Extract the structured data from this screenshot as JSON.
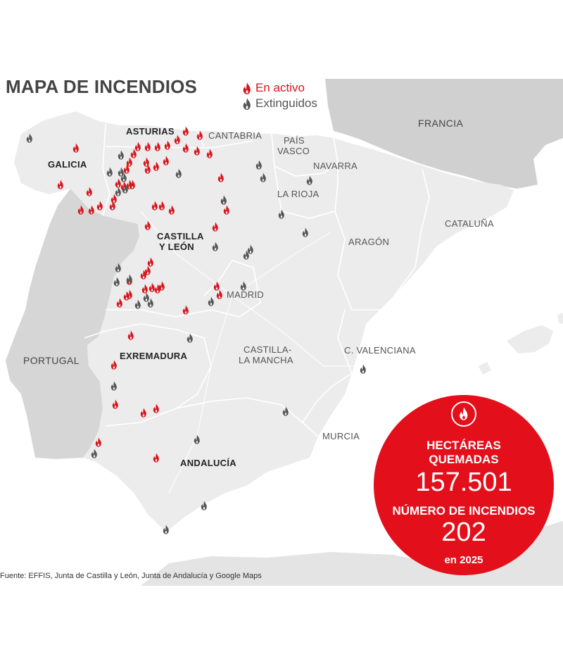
{
  "title": "MAPA DE INCENDIOS",
  "legend": {
    "active": "En activo",
    "extinguished": "Extinguidos"
  },
  "countries": {
    "france": "FRANCIA",
    "portugal": "PORTUGAL"
  },
  "regions": {
    "galicia": "GALICIA",
    "asturias": "ASTURIAS",
    "cantabria": "CANTABRIA",
    "pais_vasco_1": "PAÍS",
    "pais_vasco_2": "VASCO",
    "navarra": "NAVARRA",
    "la_rioja": "LA RIOJA",
    "cataluna": "CATALUÑA",
    "aragon": "ARAGÓN",
    "castilla_leon_1": "CASTILLA",
    "castilla_leon_2": "Y LEÓN",
    "madrid": "MADRID",
    "extremadura": "EXREMADURA",
    "castilla_mancha_1": "CASTILLA-",
    "castilla_mancha_2": "LA MANCHA",
    "valenciana": "C. VALENCIANA",
    "murcia": "MURCIA",
    "andalucia": "ANDALUCÍA"
  },
  "stats": {
    "hectares_label_1": "HECTÁREAS",
    "hectares_label_2": "QUEMADAS",
    "hectares_value": "157.501",
    "fires_label": "NÚMERO DE INCENDIOS",
    "fires_value": "202",
    "year_label": "en 2025"
  },
  "source": "Fuente: EFFIS, Junta de Castilla y León, Junta de Andalucía y Google Maps",
  "colors": {
    "active": "#d9141c",
    "extinguished": "#555555",
    "circle": "#e30f1b",
    "spain": "#ececec",
    "portugal": "#d6d6d6",
    "france": "#d0d0d0"
  },
  "icons": {
    "active": "flame-icon-red",
    "extinguished": "flame-icon-grey"
  }
}
